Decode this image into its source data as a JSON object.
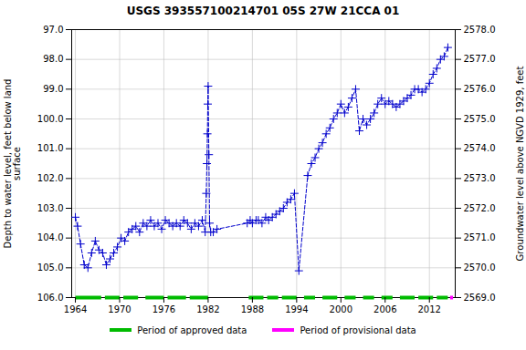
{
  "chart_data": {
    "type": "line",
    "title": "USGS 393557100214701 05S 27W 21CCA 01",
    "ylabel": "Depth to water level, feet below land\nsurface",
    "y2label": "Groundwater level above NGVD 1929, feet",
    "xlim": [
      1963.5,
      2015.5
    ],
    "xticks": [
      1964,
      1970,
      1976,
      1982,
      1988,
      1994,
      2000,
      2006,
      2012
    ],
    "ylim": [
      106.0,
      97.0
    ],
    "yticks": [
      {
        "value": 97.0,
        "label": "97.0"
      },
      {
        "value": 98.0,
        "label": "98.0"
      },
      {
        "value": 99.0,
        "label": "99.0"
      },
      {
        "value": 100.0,
        "label": "100.0"
      },
      {
        "value": 101.0,
        "label": "101.0"
      },
      {
        "value": 102.0,
        "label": "102.0"
      },
      {
        "value": 103.0,
        "label": "103.0"
      },
      {
        "value": 104.0,
        "label": "104.0"
      },
      {
        "value": 105.0,
        "label": "105.0"
      },
      {
        "value": 106.0,
        "label": "106.0"
      }
    ],
    "y2lim": [
      2569.0,
      2578.0
    ],
    "y2ticks": [
      {
        "value": 2569.0,
        "label": "2569.0"
      },
      {
        "value": 2570.0,
        "label": "2570.0"
      },
      {
        "value": 2571.0,
        "label": "2571.0"
      },
      {
        "value": 2572.0,
        "label": "2572.0"
      },
      {
        "value": 2573.0,
        "label": "2573.0"
      },
      {
        "value": 2574.0,
        "label": "2574.0"
      },
      {
        "value": 2575.0,
        "label": "2575.0"
      },
      {
        "value": 2576.0,
        "label": "2576.0"
      },
      {
        "value": 2577.0,
        "label": "2577.0"
      },
      {
        "value": 2578.0,
        "label": "2578.0"
      }
    ],
    "grid": true,
    "legend": "bottom",
    "x": [
      1964.0,
      1964.3,
      1964.7,
      1965.2,
      1965.7,
      1966.2,
      1966.7,
      1967.2,
      1967.7,
      1968.2,
      1968.7,
      1969.2,
      1969.7,
      1970.2,
      1970.7,
      1971.2,
      1971.7,
      1972.2,
      1972.7,
      1973.2,
      1973.7,
      1974.2,
      1974.7,
      1975.2,
      1975.7,
      1976.2,
      1976.7,
      1977.2,
      1977.7,
      1978.2,
      1978.7,
      1979.2,
      1979.7,
      1980.2,
      1980.7,
      1981.2,
      1981.6,
      1981.75,
      1981.83,
      1981.9,
      1981.95,
      1982.0,
      1982.1,
      1982.2,
      1982.35,
      1982.7,
      1983.2,
      1987.3,
      1987.7,
      1988.0,
      1988.5,
      1988.8,
      1989.3,
      1989.8,
      1990.2,
      1990.7,
      1991.2,
      1991.7,
      1992.2,
      1992.7,
      1993.2,
      1993.7,
      1994.3,
      1995.5,
      1996.0,
      1996.5,
      1997.0,
      1997.5,
      1998.0,
      1998.5,
      1999.0,
      1999.5,
      2000.0,
      2000.5,
      2001.0,
      2001.5,
      2002.0,
      2002.5,
      2003.0,
      2003.5,
      2004.0,
      2004.5,
      2005.0,
      2005.5,
      2006.0,
      2006.5,
      2007.0,
      2007.5,
      2008.0,
      2008.5,
      2009.0,
      2009.5,
      2010.0,
      2010.5,
      2011.0,
      2011.5,
      2012.0,
      2012.5,
      2013.0,
      2013.5,
      2014.0,
      2014.5
    ],
    "series": [
      {
        "color": "#0000cc",
        "line_style": "dashed",
        "marker": "plus",
        "values": [
          103.3,
          103.6,
          104.2,
          104.9,
          105.0,
          104.5,
          104.1,
          104.4,
          104.5,
          104.9,
          104.7,
          104.5,
          104.3,
          104.0,
          104.1,
          103.8,
          103.7,
          103.6,
          103.8,
          103.5,
          103.6,
          103.4,
          103.6,
          103.5,
          103.7,
          103.4,
          103.5,
          103.6,
          103.5,
          103.6,
          103.4,
          103.5,
          103.7,
          103.5,
          103.6,
          103.4,
          103.8,
          102.5,
          101.5,
          100.5,
          99.5,
          98.9,
          101.2,
          103.5,
          103.8,
          103.8,
          103.7,
          103.5,
          103.4,
          103.5,
          103.4,
          103.4,
          103.5,
          103.3,
          103.4,
          103.3,
          103.2,
          103.1,
          103.0,
          102.8,
          102.7,
          102.5,
          105.1,
          101.9,
          101.5,
          101.3,
          101.0,
          100.8,
          100.5,
          100.3,
          100.0,
          99.8,
          99.5,
          99.8,
          99.6,
          99.3,
          99.0,
          100.4,
          100.0,
          100.2,
          100.0,
          99.8,
          99.5,
          99.3,
          99.5,
          99.4,
          99.5,
          99.6,
          99.5,
          99.4,
          99.3,
          99.2,
          99.0,
          99.0,
          99.1,
          99.0,
          98.8,
          98.5,
          98.3,
          98.0,
          97.9,
          97.6
        ]
      },
      {
        "name": "Period of approved data",
        "type": "span",
        "color": "#00bb00",
        "level": 106.0,
        "spans": [
          [
            1964.0,
            1967.5
          ],
          [
            1968.0,
            1970.0
          ],
          [
            1970.5,
            1972.5
          ],
          [
            1973.5,
            1976.0
          ],
          [
            1976.5,
            1979.0
          ],
          [
            1979.5,
            1982.0
          ],
          [
            1987.5,
            1989.5
          ],
          [
            1990.0,
            1991.5
          ],
          [
            1992.0,
            1994.0
          ],
          [
            1995.0,
            1996.5
          ],
          [
            1997.5,
            1999.5
          ],
          [
            2000.5,
            2002.0
          ],
          [
            2003.0,
            2004.5
          ],
          [
            2005.5,
            2007.0
          ],
          [
            2008.0,
            2010.0
          ],
          [
            2010.5,
            2012.5
          ],
          [
            2013.0,
            2014.5
          ]
        ]
      },
      {
        "name": "Period of provisional data",
        "type": "span",
        "color": "#ff00ff",
        "level": 106.0,
        "spans": [
          [
            2014.8,
            2015.2
          ]
        ]
      }
    ]
  }
}
